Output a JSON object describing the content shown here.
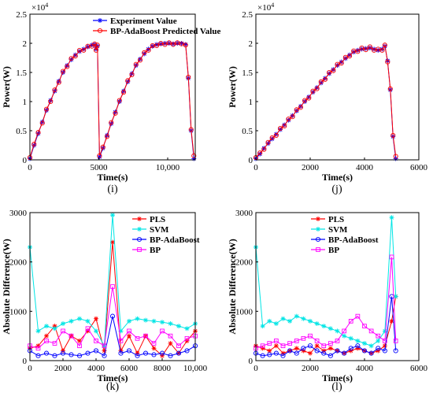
{
  "chart_data": [
    {
      "type": "line",
      "panel": "i",
      "caption": "(i)",
      "xlabel": "Time(s)",
      "ylabel": "Power(W)",
      "exponent_label": "×10^4",
      "xlim": [
        0,
        12000
      ],
      "ylim": [
        0,
        2.5
      ],
      "xticks": [
        0,
        5000,
        10000
      ],
      "xtick_labels": [
        "0",
        "5000",
        "10,000"
      ],
      "yticks": [
        0,
        0.5,
        1,
        1.5,
        2,
        2.5
      ],
      "ytick_labels": [
        "0",
        "0.5",
        "1",
        "1.5",
        "2",
        "2.5"
      ],
      "legend_position": "top-left",
      "series": [
        {
          "name": "Experiment Value",
          "color": "#0000ff",
          "marker": "star",
          "x": [
            0,
            300,
            600,
            900,
            1200,
            1500,
            1800,
            2100,
            2400,
            2700,
            3000,
            3300,
            3600,
            3900,
            4200,
            4500,
            4700,
            4800,
            4900,
            5050,
            5300,
            5600,
            5900,
            6200,
            6500,
            6800,
            7100,
            7400,
            7700,
            8000,
            8300,
            8600,
            8900,
            9200,
            9500,
            9800,
            10100,
            10400,
            10700,
            11000,
            11300,
            11500,
            11700,
            11900
          ],
          "y": [
            0.02,
            0.25,
            0.45,
            0.65,
            0.85,
            1.02,
            1.18,
            1.35,
            1.5,
            1.62,
            1.72,
            1.8,
            1.86,
            1.9,
            1.94,
            1.97,
            1.98,
            1.9,
            1.95,
            0.05,
            0.2,
            0.42,
            0.62,
            0.82,
            1.0,
            1.18,
            1.34,
            1.48,
            1.62,
            1.73,
            1.82,
            1.9,
            1.95,
            1.98,
            1.99,
            2.0,
            2.0,
            1.99,
            2.0,
            2.0,
            1.98,
            1.4,
            0.5,
            0.02
          ]
        },
        {
          "name": "BP-AdaBoost Predicted Value",
          "color": "#ff0000",
          "marker": "circle",
          "x": [
            0,
            300,
            600,
            900,
            1200,
            1500,
            1800,
            2100,
            2400,
            2700,
            3000,
            3300,
            3600,
            3900,
            4200,
            4500,
            4700,
            4800,
            4900,
            5050,
            5300,
            5600,
            5900,
            6200,
            6500,
            6800,
            7100,
            7400,
            7700,
            8000,
            8300,
            8600,
            8900,
            9200,
            9500,
            9800,
            10100,
            10400,
            10700,
            11000,
            11300,
            11500,
            11700,
            11900
          ],
          "y": [
            0.04,
            0.27,
            0.47,
            0.63,
            0.87,
            1.0,
            1.2,
            1.33,
            1.52,
            1.6,
            1.74,
            1.78,
            1.88,
            1.88,
            1.95,
            1.95,
            1.99,
            1.88,
            1.97,
            0.07,
            0.22,
            0.4,
            0.64,
            0.8,
            1.02,
            1.16,
            1.36,
            1.46,
            1.64,
            1.71,
            1.84,
            1.88,
            1.96,
            1.96,
            2.0,
            1.98,
            2.01,
            1.98,
            2.01,
            1.99,
            1.97,
            1.42,
            0.52,
            0.07
          ]
        }
      ]
    },
    {
      "type": "line",
      "panel": "j",
      "caption": "(j)",
      "xlabel": "Time(s)",
      "ylabel": "Power(W)",
      "exponent_label": "×10^4",
      "xlim": [
        0,
        6000
      ],
      "ylim": [
        0,
        2.5
      ],
      "xticks": [
        0,
        2000,
        4000,
        6000
      ],
      "xtick_labels": [
        "0",
        "2000",
        "4000",
        "6000"
      ],
      "yticks": [
        0,
        0.5,
        1,
        1.5,
        2,
        2.5
      ],
      "ytick_labels": [
        "0",
        "0.5",
        "1",
        "1.5",
        "2",
        "2.5"
      ],
      "legend_position": "top-left",
      "series": [
        {
          "name": "Experiment Value",
          "color": "#0000ff",
          "marker": "star",
          "x": [
            0,
            150,
            300,
            450,
            600,
            750,
            900,
            1050,
            1200,
            1350,
            1500,
            1650,
            1800,
            1950,
            2100,
            2250,
            2400,
            2550,
            2700,
            2850,
            3000,
            3150,
            3300,
            3450,
            3600,
            3750,
            3900,
            4050,
            4200,
            4350,
            4500,
            4650,
            4750,
            4850,
            4950,
            5050,
            5150
          ],
          "y": [
            0.02,
            0.1,
            0.2,
            0.28,
            0.36,
            0.44,
            0.52,
            0.6,
            0.68,
            0.76,
            0.84,
            0.92,
            1.0,
            1.08,
            1.16,
            1.24,
            1.32,
            1.4,
            1.48,
            1.55,
            1.62,
            1.68,
            1.74,
            1.8,
            1.85,
            1.88,
            1.9,
            1.91,
            1.92,
            1.9,
            1.88,
            1.9,
            1.95,
            1.7,
            1.2,
            0.4,
            0.02
          ]
        },
        {
          "name": "BP-AdaBoost Predicted Value",
          "color": "#ff0000",
          "marker": "circle",
          "x": [
            0,
            150,
            300,
            450,
            600,
            750,
            900,
            1050,
            1200,
            1350,
            1500,
            1650,
            1800,
            1950,
            2100,
            2250,
            2400,
            2550,
            2700,
            2850,
            3000,
            3150,
            3300,
            3450,
            3600,
            3750,
            3900,
            4050,
            4200,
            4350,
            4500,
            4650,
            4750,
            4850,
            4950,
            5050,
            5150
          ],
          "y": [
            0.04,
            0.12,
            0.18,
            0.3,
            0.38,
            0.42,
            0.54,
            0.58,
            0.7,
            0.74,
            0.86,
            0.9,
            1.02,
            1.06,
            1.18,
            1.22,
            1.34,
            1.38,
            1.5,
            1.53,
            1.64,
            1.66,
            1.76,
            1.78,
            1.87,
            1.86,
            1.92,
            1.89,
            1.94,
            1.88,
            1.9,
            1.88,
            1.97,
            1.68,
            1.22,
            0.42,
            0.06
          ]
        }
      ]
    },
    {
      "type": "line",
      "panel": "k",
      "caption": "(k)",
      "xlabel": "Time(s)",
      "ylabel": "Absolute Difference(W)",
      "xlim": [
        0,
        10000
      ],
      "ylim": [
        0,
        3000
      ],
      "xticks": [
        0,
        2000,
        4000,
        6000,
        8000,
        10000
      ],
      "xtick_labels": [
        "0",
        "2000",
        "4000",
        "6000",
        "8000",
        "10,000"
      ],
      "yticks": [
        0,
        1000,
        2000,
        3000
      ],
      "ytick_labels": [
        "0",
        "1000",
        "2000",
        "3000"
      ],
      "legend_position": "top-right",
      "series": [
        {
          "name": "PLS",
          "color": "#ff0000",
          "marker": "star",
          "x": [
            0,
            500,
            1000,
            1500,
            2000,
            2500,
            3000,
            3500,
            4000,
            4500,
            5000,
            5500,
            6000,
            6500,
            7000,
            7500,
            8000,
            8500,
            9000,
            9500,
            10000
          ],
          "y": [
            250,
            300,
            500,
            700,
            200,
            500,
            400,
            600,
            850,
            200,
            2400,
            200,
            500,
            150,
            500,
            250,
            100,
            350,
            150,
            400,
            600
          ]
        },
        {
          "name": "SVM",
          "color": "#00e5e5",
          "marker": "star",
          "x": [
            0,
            500,
            1000,
            1500,
            2000,
            2500,
            3000,
            3500,
            4000,
            4500,
            5000,
            5500,
            6000,
            6500,
            7000,
            7500,
            8000,
            8500,
            9000,
            9500,
            10000
          ],
          "y": [
            2300,
            600,
            700,
            650,
            750,
            800,
            850,
            800,
            600,
            300,
            2950,
            600,
            800,
            850,
            820,
            800,
            780,
            750,
            700,
            650,
            750
          ]
        },
        {
          "name": "BP-AdaBoost",
          "color": "#0000ff",
          "marker": "circle",
          "x": [
            0,
            500,
            1000,
            1500,
            2000,
            2500,
            3000,
            3500,
            4000,
            4500,
            5000,
            5500,
            6000,
            6500,
            7000,
            7500,
            8000,
            8500,
            9000,
            9500,
            10000
          ],
          "y": [
            200,
            100,
            150,
            100,
            150,
            120,
            100,
            150,
            200,
            100,
            900,
            150,
            200,
            100,
            150,
            120,
            150,
            100,
            150,
            200,
            300
          ]
        },
        {
          "name": "BP",
          "color": "#ff00ff",
          "marker": "square",
          "x": [
            0,
            500,
            1000,
            1500,
            2000,
            2500,
            3000,
            3500,
            4000,
            4500,
            5000,
            5500,
            6000,
            6500,
            7000,
            7500,
            8000,
            8500,
            9000,
            9500,
            10000
          ],
          "y": [
            300,
            250,
            400,
            350,
            600,
            500,
            300,
            650,
            400,
            300,
            1500,
            400,
            600,
            450,
            500,
            350,
            600,
            500,
            300,
            450,
            500
          ]
        }
      ]
    },
    {
      "type": "line",
      "panel": "l",
      "caption": "(l)",
      "xlabel": "Time(s)",
      "ylabel": "Absolute Difference(W)",
      "xlim": [
        0,
        6000
      ],
      "ylim": [
        0,
        3000
      ],
      "xticks": [
        0,
        2000,
        4000,
        6000
      ],
      "xtick_labels": [
        "0",
        "2000",
        "4000",
        "6000"
      ],
      "yticks": [
        0,
        1000,
        2000,
        3000
      ],
      "ytick_labels": [
        "0",
        "1000",
        "2000",
        "3000"
      ],
      "legend_position": "top-left",
      "series": [
        {
          "name": "PLS",
          "color": "#ff0000",
          "marker": "star",
          "x": [
            0,
            250,
            500,
            750,
            1000,
            1250,
            1500,
            1750,
            2000,
            2250,
            2500,
            2750,
            3000,
            3250,
            3500,
            3750,
            4000,
            4250,
            4500,
            4750,
            5000,
            5150
          ],
          "y": [
            300,
            250,
            200,
            300,
            150,
            200,
            250,
            200,
            150,
            300,
            200,
            250,
            200,
            150,
            200,
            250,
            200,
            150,
            200,
            300,
            800,
            1300
          ]
        },
        {
          "name": "SVM",
          "color": "#00e5e5",
          "marker": "star",
          "x": [
            0,
            250,
            500,
            750,
            1000,
            1250,
            1500,
            1750,
            2000,
            2250,
            2500,
            2750,
            3000,
            3250,
            3500,
            3750,
            4000,
            4250,
            4500,
            4750,
            5000,
            5150
          ],
          "y": [
            2300,
            700,
            800,
            750,
            850,
            800,
            900,
            850,
            800,
            750,
            700,
            650,
            600,
            500,
            450,
            400,
            350,
            300,
            400,
            600,
            2900,
            1300
          ]
        },
        {
          "name": "BP-AdaBoost",
          "color": "#0000ff",
          "marker": "circle",
          "x": [
            0,
            250,
            500,
            750,
            1000,
            1250,
            1500,
            1750,
            2000,
            2250,
            2500,
            2750,
            3000,
            3250,
            3500,
            3750,
            4000,
            4250,
            4500,
            4750,
            5000,
            5150
          ],
          "y": [
            150,
            100,
            120,
            150,
            100,
            200,
            150,
            250,
            300,
            200,
            150,
            100,
            200,
            150,
            250,
            300,
            200,
            150,
            250,
            200,
            1300,
            200
          ]
        },
        {
          "name": "BP",
          "color": "#ff00ff",
          "marker": "square",
          "x": [
            0,
            250,
            500,
            750,
            1000,
            1250,
            1500,
            1750,
            2000,
            2250,
            2500,
            2750,
            3000,
            3250,
            3500,
            3750,
            4000,
            4250,
            4500,
            4750,
            5000,
            5150
          ],
          "y": [
            250,
            300,
            350,
            400,
            300,
            350,
            400,
            450,
            500,
            400,
            300,
            350,
            400,
            600,
            800,
            900,
            700,
            600,
            500,
            400,
            2100,
            400
          ]
        }
      ]
    }
  ]
}
